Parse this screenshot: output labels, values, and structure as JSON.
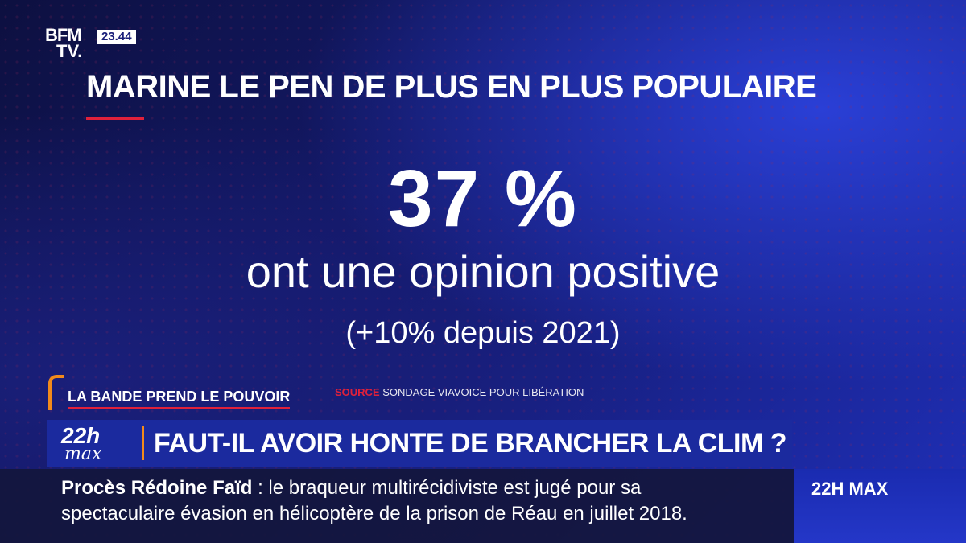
{
  "channel": {
    "line1": "BFM",
    "line2": "TV.",
    "clock": "23.44"
  },
  "title": "MARINE LE PEN DE PLUS EN PLUS POPULAIRE",
  "stat": {
    "value": "37 %",
    "label": "ont une opinion positive",
    "change": "(+10% depuis 2021)"
  },
  "show": {
    "label": "LA BANDE PREND LE POUVOIR"
  },
  "source": {
    "key": "SOURCE",
    "value": "SONDAGE VIAVOICE POUR LIBÉRATION"
  },
  "headline": {
    "badge_top": "22h",
    "badge_bottom": "max",
    "text": "FAUT-IL AVOIR HONTE DE BRANCHER LA CLIM ?"
  },
  "ticker": {
    "topic": "Procès Rédoine Faïd",
    "line1_rest": " : le braqueur multirécidiviste est jugé pour sa",
    "line2": "spectaculaire évasion en hélicoptère de la prison de Réau en juillet 2018.",
    "brand": "22H MAX"
  },
  "colors": {
    "accent_red": "#e0213b",
    "accent_orange": "#f28a1b",
    "headline_bg": "#1b2a9e"
  }
}
